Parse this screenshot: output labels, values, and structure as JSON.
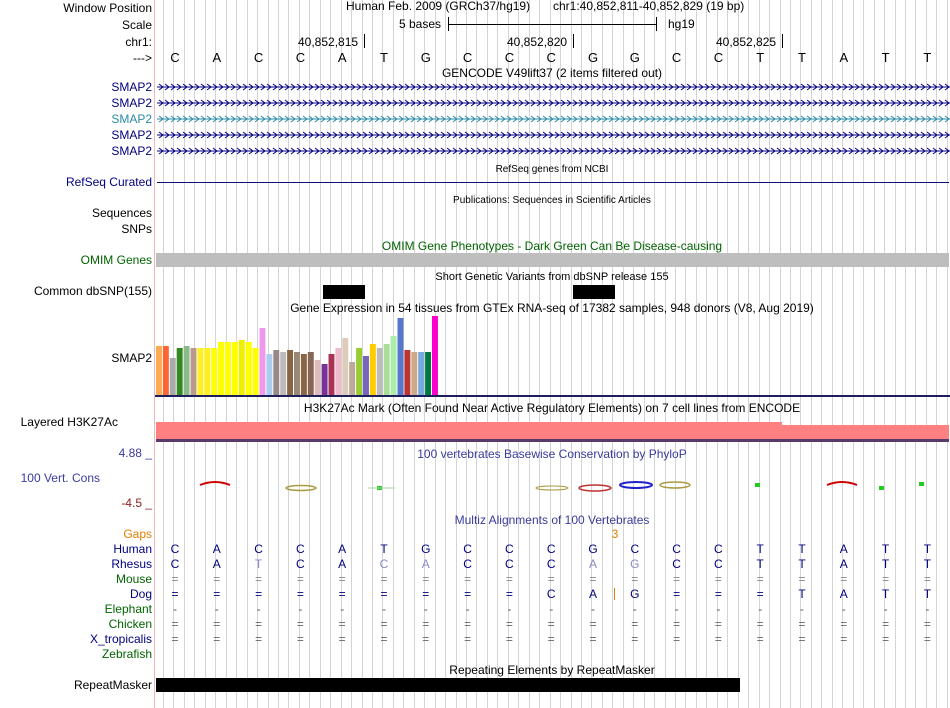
{
  "labels": {
    "window_position": "Window Position",
    "scale": "Scale",
    "chrom": "chr1:",
    "strand": "--->",
    "smap2_rows": [
      "SMAP2",
      "SMAP2",
      "SMAP2",
      "SMAP2",
      "SMAP2"
    ],
    "refseq": "RefSeq Curated",
    "sequences": "Sequences",
    "snps": "SNPs",
    "omim": "OMIM Genes",
    "common_dbsnp": "Common dbSNP(155)",
    "gtex": "SMAP2",
    "h3k27ac": "Layered H3K27Ac",
    "cons_max": "4.88 _",
    "cons_label": "100 Vert. Cons",
    "cons_min": "-4.5 _",
    "gaps": "Gaps",
    "species": [
      "Human",
      "Rhesus",
      "Mouse",
      "Dog",
      "Elephant",
      "Chicken",
      "X_tropicalis",
      "Zebrafish"
    ],
    "repeatmasker": "RepeatMasker"
  },
  "header": {
    "assembly": "Human Feb. 2009 (GRCh37/hg19)",
    "position": "chr1:40,852,811-40,852,829 (19 bp)",
    "scale_text": "5 bases",
    "db": "hg19",
    "ticks": [
      "40,852,815",
      "40,852,820",
      "40,852,825"
    ]
  },
  "bases": [
    "C",
    "A",
    "C",
    "C",
    "A",
    "T",
    "G",
    "C",
    "C",
    "C",
    "G",
    "G",
    "C",
    "C",
    "T",
    "T",
    "A",
    "T",
    "T"
  ],
  "tracks": {
    "gencode_title": "GENCODE V49lift37 (2 items filtered out)",
    "refseq_title": "RefSeq genes from NCBI",
    "publications_title": "Publications: Sequences in Scientific Articles",
    "omim_title": "OMIM Gene Phenotypes - Dark Green Can Be Disease-causing",
    "dbsnp_title": "Short Genetic Variants from dbSNP release 155",
    "gtex_title": "Gene Expression in 54 tissues from GTEx RNA-seq of 17382 samples, 948 donors (V8, Aug 2019)",
    "h3k27ac_title": "H3K27Ac Mark (Often Found Near Active Regulatory Elements) on 7 cell lines from ENCODE",
    "phylop_title": "100 vertebrates Basewise Conservation by PhyloP",
    "multiz_title": "Multiz Alignments of 100 Vertebrates",
    "repeat_title": "Repeating Elements by RepeatMasker",
    "gap_marker": "3"
  },
  "alignment": {
    "Human": [
      "C",
      "A",
      "C",
      "C",
      "A",
      "T",
      "G",
      "C",
      "C",
      "C",
      "G",
      "C",
      "C",
      "C",
      "T",
      "T",
      "A",
      "T",
      "T"
    ],
    "Rhesus": [
      "C",
      "A",
      "T",
      "C",
      "A",
      "C",
      "A",
      "C",
      "C",
      "C",
      "A",
      "G",
      "C",
      "C",
      "T",
      "T",
      "A",
      "T",
      "T"
    ],
    "Mouse": [
      "=",
      "=",
      "=",
      "=",
      "=",
      "=",
      "=",
      "=",
      "=",
      "=",
      "=",
      "=",
      "=",
      "=",
      "=",
      "=",
      "=",
      "=",
      "="
    ],
    "Dog": [
      "=",
      "=",
      "=",
      "=",
      "=",
      "=",
      "=",
      "=",
      "=",
      "C",
      "A",
      "G",
      "=",
      "=",
      "=",
      "T",
      "A",
      "T",
      "T"
    ],
    "Elephant": [
      "-",
      "-",
      "-",
      "-",
      "-",
      "-",
      "-",
      "-",
      "-",
      "-",
      "-",
      "-",
      "-",
      "-",
      "-",
      "-",
      "-",
      "-",
      "-"
    ],
    "Chicken": [
      "=",
      "=",
      "=",
      "=",
      "=",
      "=",
      "=",
      "=",
      "=",
      "=",
      "=",
      "=",
      "=",
      "=",
      "=",
      "=",
      "=",
      "=",
      "="
    ],
    "X_tropicalis": [
      "=",
      "=",
      "=",
      "=",
      "=",
      "=",
      "=",
      "=",
      "=",
      "=",
      "=",
      "=",
      "=",
      "=",
      "=",
      "=",
      "=",
      "=",
      "="
    ],
    "Zebrafish": [
      "",
      "",
      "",
      "",
      "",
      "",
      "",
      "",
      "",
      "",
      "",
      "",
      "",
      "",
      "",
      "",
      "",
      "",
      ""
    ]
  },
  "gtex": {
    "values": [
      50,
      50,
      38,
      48,
      50,
      48,
      48,
      48,
      48,
      54,
      54,
      54,
      56,
      54,
      48,
      68,
      42,
      46,
      44,
      46,
      44,
      42,
      44,
      36,
      32,
      42,
      48,
      58,
      34,
      48,
      40,
      52,
      48,
      52,
      60,
      78,
      46,
      44,
      44,
      44,
      80
    ],
    "colors": [
      "#FFAA55",
      "#FF6633",
      "#AAAAAA",
      "#338822",
      "#88BB88",
      "#BB9988",
      "#FFEE22",
      "#FFEE22",
      "#FFFF00",
      "#FFFF00",
      "#FFFF00",
      "#FFFF00",
      "#EEEE00",
      "#FFFF00",
      "#FFFF00",
      "#EE99EE",
      "#AACCEE",
      "#998888",
      "#BBBBBB",
      "#886644",
      "#998877",
      "#886644",
      "#886655",
      "#DDBBBB",
      "#773399",
      "#AA3355",
      "#EEBBCC",
      "#DDCCBB",
      "#BBAA99",
      "#99CC33",
      "#7766BB",
      "#FFCC00",
      "#BBBBBB",
      "#AADD99",
      "#AAEEAA",
      "#5577CC",
      "#BB3333",
      "#CCAA88",
      "#77AADD",
      "#007744",
      "#FF00CC"
    ]
  },
  "colors": {
    "navy": "#000080",
    "omim_green": "#006400",
    "gaps": "#E08000",
    "phylop_blue": "#3A3AA0",
    "conservation_red": "#8B2020",
    "h3k27ac_fill": "#FF8080",
    "refseq_line": "#0C0C78"
  }
}
